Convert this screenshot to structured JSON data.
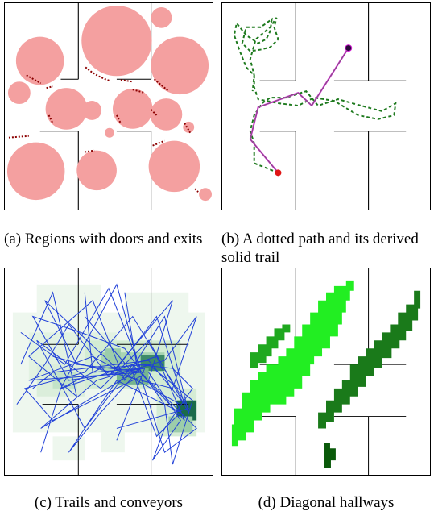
{
  "figure": {
    "panels": [
      {
        "id": "a",
        "caption": "(a)  Regions with doors and exits"
      },
      {
        "id": "b",
        "caption": "(b)  A dotted path and its derived solid trail"
      },
      {
        "id": "c",
        "caption": "(c)  Trails and conveyors"
      },
      {
        "id": "d",
        "caption": "(d)  Diagonal hallways"
      }
    ]
  },
  "colors": {
    "region_fill": "#f4a0a0",
    "door_marks": "#8b0000",
    "wall": "#000000",
    "dotted_path": "#1e7a1e",
    "solid_trail_magenta": "#d01fd0",
    "trail_blue": "#1f3fd8",
    "conveyor_green_light": "#e6f4e6",
    "conveyor_green_dark": "#1a6b4a",
    "hallway_bright": "#22ee22",
    "hallway_mid": "#1fa81f",
    "hallway_dark": "#0a5a0a",
    "start_point": "#e01515",
    "end_point": "#2a0a3a"
  }
}
